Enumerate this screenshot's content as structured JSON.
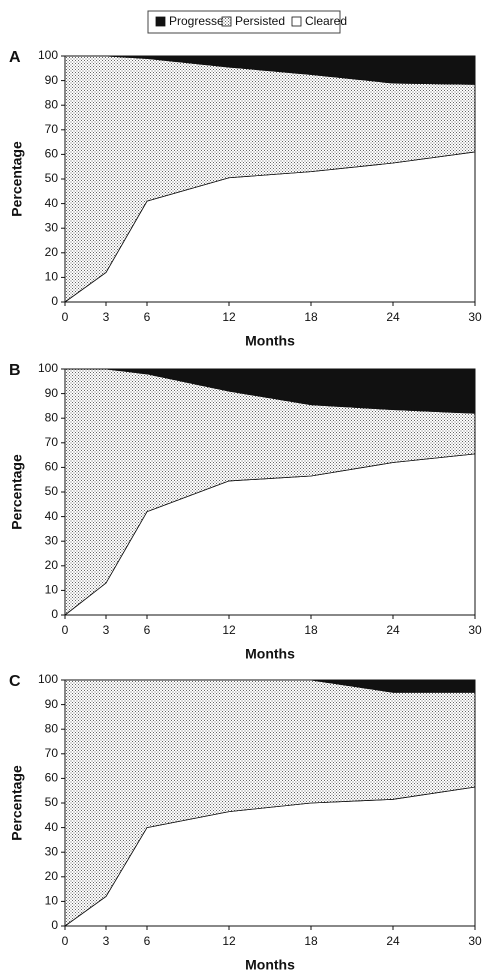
{
  "chart_data": [
    {
      "type": "stacked-area",
      "label": "A",
      "x_label": "Months",
      "y_label": "Percentage",
      "x": [
        0,
        3,
        6,
        12,
        18,
        24,
        30
      ],
      "series": [
        {
          "name": "Progressed",
          "color": "#111111",
          "values": [
            0,
            0,
            1,
            4.5,
            7.5,
            11,
            11.5
          ]
        },
        {
          "name": "Persisted",
          "color": "#666666",
          "pattern": "dots",
          "values": [
            100,
            88,
            58,
            45,
            39.5,
            32.5,
            27.5
          ]
        },
        {
          "name": "Cleared",
          "color": "#ffffff",
          "values": [
            0,
            12,
            41,
            50.5,
            53,
            56.5,
            61
          ]
        }
      ],
      "xlim": [
        0,
        30
      ],
      "xticks": [
        0,
        3,
        6,
        12,
        18,
        24,
        30
      ],
      "ylim": [
        0,
        100
      ],
      "yticks": [
        0,
        10,
        20,
        30,
        40,
        50,
        60,
        70,
        80,
        90,
        100
      ]
    },
    {
      "type": "stacked-area",
      "label": "B",
      "x_label": "Months",
      "y_label": "Percentage",
      "x": [
        0,
        3,
        6,
        12,
        18,
        24,
        30
      ],
      "series": [
        {
          "name": "Progressed",
          "color": "#111111",
          "values": [
            0,
            0,
            2,
            9,
            14.5,
            16.5,
            18
          ]
        },
        {
          "name": "Persisted",
          "color": "#666666",
          "pattern": "dots",
          "values": [
            100,
            87,
            56,
            36.5,
            29,
            21.5,
            16.5
          ]
        },
        {
          "name": "Cleared",
          "color": "#ffffff",
          "values": [
            0,
            13,
            42,
            54.5,
            56.5,
            62,
            65.5
          ]
        }
      ],
      "xlim": [
        0,
        30
      ],
      "xticks": [
        0,
        3,
        6,
        12,
        18,
        24,
        30
      ],
      "ylim": [
        0,
        100
      ],
      "yticks": [
        0,
        10,
        20,
        30,
        40,
        50,
        60,
        70,
        80,
        90,
        100
      ]
    },
    {
      "type": "stacked-area",
      "label": "C",
      "x_label": "Months",
      "y_label": "Percentage",
      "x": [
        0,
        3,
        6,
        12,
        18,
        24,
        30
      ],
      "series": [
        {
          "name": "Progressed",
          "color": "#111111",
          "values": [
            0,
            0,
            0,
            0,
            0,
            5,
            5
          ]
        },
        {
          "name": "Persisted",
          "color": "#666666",
          "pattern": "dots",
          "values": [
            100,
            88,
            60,
            53.5,
            50,
            43.5,
            38.5
          ]
        },
        {
          "name": "Cleared",
          "color": "#ffffff",
          "values": [
            0,
            12,
            40,
            46.5,
            50,
            51.5,
            56.5
          ]
        }
      ],
      "xlim": [
        0,
        30
      ],
      "xticks": [
        0,
        3,
        6,
        12,
        18,
        24,
        30
      ],
      "ylim": [
        0,
        100
      ],
      "yticks": [
        0,
        10,
        20,
        30,
        40,
        50,
        60,
        70,
        80,
        90,
        100
      ]
    }
  ]
}
